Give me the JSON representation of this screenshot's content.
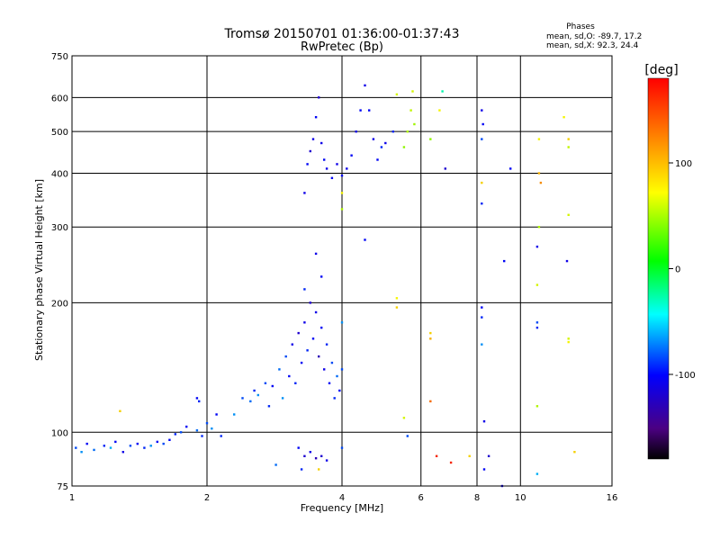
{
  "chart_data": {
    "type": "scatter",
    "title": "Tromsø 20150701 01:36:00-01:37:43",
    "subtitle": "RwPretec (Bp)",
    "xlabel": "Frequency [MHz]",
    "ylabel": "Stationary phase Virtual Height [km]",
    "x_scale": "log2",
    "y_scale": "log",
    "xlim": [
      1,
      16
    ],
    "ylim": [
      75,
      750
    ],
    "x_ticks": [
      "1",
      "2",
      "4",
      "6",
      "8",
      "10",
      "16"
    ],
    "x_tick_values": [
      1,
      2,
      4,
      6,
      8,
      10,
      16
    ],
    "y_ticks": [
      "75",
      "100",
      "200",
      "300",
      "400",
      "500",
      "600",
      "750"
    ],
    "y_tick_values": [
      75,
      100,
      200,
      300,
      400,
      500,
      600,
      750
    ],
    "grid": true,
    "phases": {
      "heading": "Phases",
      "o_line": "mean, sd,O: -89.7, 17.2",
      "x_line": "mean, sd,X:  92.3, 24.4"
    },
    "colorbar": {
      "label": "[deg]",
      "range": [
        -180,
        180
      ],
      "ticks": [
        "100",
        "0",
        "-100"
      ],
      "tick_values": [
        100,
        0,
        -100
      ]
    },
    "series": [
      {
        "values": [
          [
            1.02,
            92,
            -80
          ],
          [
            1.05,
            90,
            -60
          ],
          [
            1.08,
            94,
            -100
          ],
          [
            1.12,
            91,
            -70
          ],
          [
            1.18,
            93,
            -90
          ],
          [
            1.22,
            92,
            -50
          ],
          [
            1.25,
            95,
            -100
          ],
          [
            1.3,
            90,
            -110
          ],
          [
            1.35,
            93,
            -80
          ],
          [
            1.4,
            94,
            -100
          ],
          [
            1.45,
            92,
            -90
          ],
          [
            1.5,
            93,
            -60
          ],
          [
            1.55,
            95,
            -100
          ],
          [
            1.6,
            94,
            -80
          ],
          [
            1.65,
            96,
            -100
          ],
          [
            1.7,
            99,
            -90
          ],
          [
            1.75,
            100,
            -80
          ],
          [
            1.8,
            103,
            -100
          ],
          [
            1.9,
            101,
            -70
          ],
          [
            1.95,
            98,
            -90
          ],
          [
            2.0,
            105,
            -80
          ],
          [
            2.05,
            102,
            -60
          ],
          [
            2.1,
            110,
            -100
          ],
          [
            2.15,
            98,
            -90
          ],
          [
            1.28,
            112,
            120
          ],
          [
            1.9,
            120,
            -100
          ],
          [
            1.92,
            118,
            -90
          ],
          [
            2.3,
            110,
            -60
          ],
          [
            2.4,
            120,
            -80
          ],
          [
            2.5,
            118,
            -70
          ],
          [
            2.55,
            125,
            -90
          ],
          [
            2.6,
            122,
            -60
          ],
          [
            2.7,
            130,
            -80
          ],
          [
            2.75,
            115,
            -90
          ],
          [
            2.8,
            128,
            -100
          ],
          [
            2.9,
            140,
            -70
          ],
          [
            2.95,
            120,
            -60
          ],
          [
            3.0,
            150,
            -80
          ],
          [
            3.05,
            135,
            -100
          ],
          [
            3.1,
            160,
            -110
          ],
          [
            3.15,
            130,
            -90
          ],
          [
            3.2,
            170,
            -120
          ],
          [
            3.25,
            145,
            -100
          ],
          [
            3.3,
            180,
            -110
          ],
          [
            3.35,
            155,
            -90
          ],
          [
            3.4,
            200,
            -120
          ],
          [
            3.45,
            165,
            -100
          ],
          [
            3.5,
            190,
            -110
          ],
          [
            3.55,
            150,
            -130
          ],
          [
            3.6,
            175,
            -100
          ],
          [
            3.65,
            140,
            -110
          ],
          [
            3.7,
            160,
            -90
          ],
          [
            3.75,
            130,
            -100
          ],
          [
            3.8,
            145,
            -80
          ],
          [
            3.85,
            120,
            -90
          ],
          [
            3.9,
            135,
            -70
          ],
          [
            3.95,
            125,
            -100
          ],
          [
            4.0,
            140,
            -80
          ],
          [
            3.5,
            260,
            -110
          ],
          [
            3.6,
            230,
            -100
          ],
          [
            3.3,
            215,
            -90
          ],
          [
            4.0,
            180,
            -60
          ],
          [
            3.2,
            92,
            -100
          ],
          [
            3.3,
            88,
            -120
          ],
          [
            3.4,
            90,
            -110
          ],
          [
            3.5,
            87,
            -130
          ],
          [
            3.6,
            88,
            -120
          ],
          [
            3.7,
            86,
            -110
          ],
          [
            4.0,
            92,
            -80
          ],
          [
            3.55,
            82,
            120
          ],
          [
            2.85,
            84,
            -70
          ],
          [
            3.25,
            82,
            -90
          ],
          [
            3.3,
            360,
            -110
          ],
          [
            3.35,
            420,
            -100
          ],
          [
            3.4,
            450,
            -120
          ],
          [
            3.45,
            480,
            -110
          ],
          [
            3.5,
            540,
            -100
          ],
          [
            3.55,
            600,
            -120
          ],
          [
            3.6,
            470,
            -110
          ],
          [
            3.65,
            430,
            -100
          ],
          [
            3.7,
            410,
            -110
          ],
          [
            3.8,
            390,
            -100
          ],
          [
            3.9,
            420,
            -110
          ],
          [
            4.0,
            395,
            -100
          ],
          [
            4.1,
            410,
            -110
          ],
          [
            4.2,
            440,
            -100
          ],
          [
            4.3,
            500,
            -110
          ],
          [
            4.4,
            560,
            -100
          ],
          [
            4.5,
            640,
            -110
          ],
          [
            4.6,
            560,
            -100
          ],
          [
            4.7,
            480,
            -110
          ],
          [
            4.8,
            430,
            -100
          ],
          [
            4.9,
            460,
            -90
          ],
          [
            5.0,
            470,
            -110
          ],
          [
            5.2,
            500,
            -90
          ],
          [
            5.3,
            610,
            100
          ],
          [
            5.5,
            460,
            80
          ],
          [
            5.6,
            500,
            90
          ],
          [
            5.7,
            560,
            95
          ],
          [
            5.75,
            620,
            100
          ],
          [
            5.8,
            520,
            85
          ],
          [
            6.3,
            480,
            80
          ],
          [
            6.6,
            560,
            110
          ],
          [
            6.7,
            620,
            -10
          ],
          [
            6.8,
            410,
            -120
          ],
          [
            8.2,
            560,
            -110
          ],
          [
            8.25,
            520,
            -100
          ],
          [
            8.2,
            380,
            120
          ],
          [
            8.2,
            340,
            -90
          ],
          [
            8.2,
            480,
            -80
          ],
          [
            9.5,
            410,
            -100
          ],
          [
            11.0,
            480,
            110
          ],
          [
            11.0,
            400,
            130
          ],
          [
            11.1,
            380,
            140
          ],
          [
            12.5,
            540,
            110
          ],
          [
            12.8,
            480,
            120
          ],
          [
            12.8,
            460,
            95
          ],
          [
            12.8,
            320,
            100
          ],
          [
            4.5,
            280,
            -100
          ],
          [
            4.0,
            360,
            110
          ],
          [
            4.0,
            330,
            90
          ],
          [
            5.3,
            205,
            110
          ],
          [
            5.3,
            195,
            120
          ],
          [
            6.3,
            170,
            120
          ],
          [
            6.3,
            165,
            130
          ],
          [
            6.3,
            118,
            150
          ],
          [
            5.5,
            108,
            100
          ],
          [
            5.6,
            98,
            -80
          ],
          [
            8.2,
            195,
            -100
          ],
          [
            8.2,
            185,
            -90
          ],
          [
            8.2,
            160,
            -60
          ],
          [
            8.3,
            106,
            -110
          ],
          [
            8.3,
            82,
            -100
          ],
          [
            9.2,
            250,
            -100
          ],
          [
            10.9,
            270,
            -110
          ],
          [
            10.9,
            180,
            -80
          ],
          [
            10.9,
            175,
            -90
          ],
          [
            10.9,
            115,
            90
          ],
          [
            10.9,
            80,
            -50
          ],
          [
            12.7,
            250,
            -110
          ],
          [
            12.8,
            165,
            100
          ],
          [
            12.8,
            162,
            110
          ],
          [
            7.7,
            88,
            120
          ],
          [
            7.0,
            85,
            170
          ],
          [
            8.5,
            88,
            -120
          ],
          [
            9.1,
            75,
            -110
          ],
          [
            10.9,
            220,
            100
          ],
          [
            11.0,
            300,
            90
          ],
          [
            13.2,
            90,
            120
          ],
          [
            6.5,
            88,
            170
          ]
        ]
      }
    ]
  }
}
